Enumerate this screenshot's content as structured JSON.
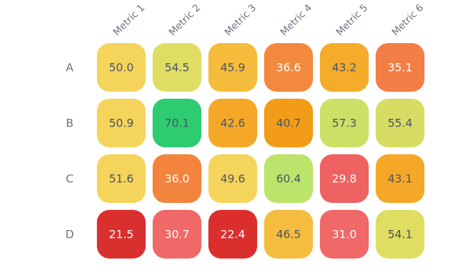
{
  "chart_data": {
    "type": "heatmap",
    "title": "",
    "xlabel": "",
    "ylabel": "",
    "columns": [
      "Metric 1",
      "Metric 2",
      "Metric 3",
      "Metric 4",
      "Metric 5",
      "Metric 6"
    ],
    "rows": [
      "A",
      "B",
      "C",
      "D"
    ],
    "values": [
      [
        50.0,
        54.5,
        45.9,
        36.6,
        43.2,
        35.1
      ],
      [
        50.9,
        70.1,
        42.6,
        40.7,
        57.3,
        55.4
      ],
      [
        51.6,
        36.0,
        49.6,
        60.4,
        29.8,
        43.1
      ],
      [
        21.5,
        30.7,
        22.4,
        46.5,
        31.0,
        54.1
      ]
    ],
    "value_labels": [
      [
        "50.0",
        "54.5",
        "45.9",
        "36.6",
        "43.2",
        "35.1"
      ],
      [
        "50.9",
        "70.1",
        "42.6",
        "40.7",
        "57.3",
        "55.4"
      ],
      [
        "51.6",
        "36.0",
        "49.6",
        "60.4",
        "29.8",
        "43.1"
      ],
      [
        "21.5",
        "30.7",
        "22.4",
        "46.5",
        "31.0",
        "54.1"
      ]
    ],
    "cell_colors": [
      [
        "#f5d45c",
        "#e0dd63",
        "#f5bb3a",
        "#f3893c",
        "#f5ac2a",
        "#f37e45"
      ],
      [
        "#f5d45c",
        "#2ecc71",
        "#f5a827",
        "#f39c18",
        "#cde066",
        "#d7dc65"
      ],
      [
        "#f5d45c",
        "#f3843e",
        "#f5d45c",
        "#bde46a",
        "#ee6262",
        "#f5a827"
      ],
      [
        "#d9302f",
        "#f06868",
        "#db2f2d",
        "#f5bd40",
        "#f06868",
        "#e0dd63"
      ]
    ],
    "light_text_threshold": 37,
    "colors": {
      "dark_text": "#4b5563",
      "light_text": "#ffffff",
      "axis_label": "#6b7280",
      "low": "#d9302f",
      "mid": "#f5d45c",
      "high": "#2ecc71"
    },
    "legend": "none",
    "grid": false
  }
}
